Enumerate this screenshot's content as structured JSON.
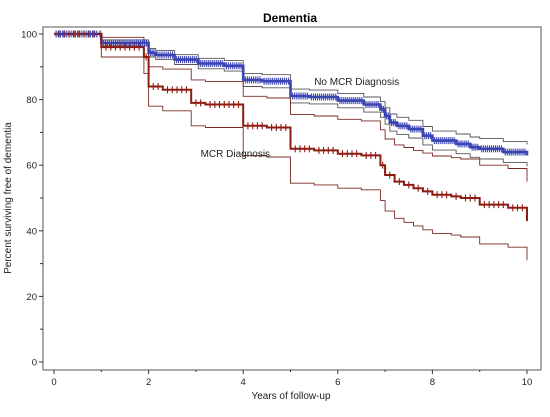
{
  "chart_data": {
    "type": "line",
    "title": "Dementia",
    "xlabel": "Years of follow-up",
    "ylabel": "Percent surviving free of dementia",
    "xlim": [
      0,
      10
    ],
    "ylim": [
      0,
      100
    ],
    "xticks": [
      0,
      2,
      4,
      6,
      8,
      10
    ],
    "yticks": [
      0,
      20,
      40,
      60,
      80,
      100
    ],
    "grid": false,
    "legend": "none",
    "annotations": [
      {
        "text": "No MCR Diagnosis",
        "x": 5.5,
        "y": 84.5
      },
      {
        "text": "MCR Diagnosis",
        "x": 3.1,
        "y": 62.5
      }
    ],
    "series": [
      {
        "name": "No MCR Diagnosis",
        "color": "#3b44b2",
        "step": true,
        "x": [
          0,
          0.95,
          1.0,
          2.0,
          2.15,
          2.55,
          3.05,
          3.6,
          4.0,
          4.4,
          5.0,
          5.4,
          6.0,
          6.55,
          6.9,
          7.0,
          7.1,
          7.25,
          7.5,
          7.8,
          8.0,
          8.5,
          8.8,
          9.0,
          9.5,
          10.0
        ],
        "y": [
          100,
          100,
          97.3,
          94.3,
          93.6,
          92.2,
          91.0,
          90.3,
          86.0,
          85.6,
          81.1,
          80.8,
          79.7,
          78.5,
          77.0,
          75.0,
          73.0,
          72.0,
          71.0,
          69.0,
          67.5,
          66.5,
          65.5,
          65.0,
          64.0,
          63.0
        ],
        "ci_upper": [
          100,
          100,
          98.2,
          95.6,
          95.0,
          93.7,
          92.6,
          91.9,
          88.0,
          87.6,
          83.2,
          82.9,
          81.9,
          80.8,
          79.4,
          77.5,
          75.6,
          74.6,
          73.7,
          71.8,
          70.4,
          69.5,
          68.6,
          68.1,
          67.2,
          66.3
        ],
        "ci_lower": [
          100,
          100,
          96.4,
          93.0,
          92.2,
          90.7,
          89.4,
          88.7,
          84.0,
          83.6,
          79.0,
          78.7,
          77.5,
          76.2,
          74.6,
          72.5,
          70.4,
          69.4,
          68.3,
          66.2,
          64.6,
          63.5,
          62.4,
          61.9,
          60.8,
          59.7
        ]
      },
      {
        "name": "MCR Diagnosis",
        "color": "#8e1a10",
        "step": true,
        "x": [
          0,
          0.95,
          1.0,
          1.9,
          2.0,
          2.3,
          2.9,
          3.2,
          4.0,
          4.5,
          5.0,
          5.5,
          6.0,
          6.5,
          6.9,
          7.0,
          7.2,
          7.4,
          7.6,
          7.8,
          8.0,
          8.4,
          8.6,
          9.0,
          9.6,
          10.0
        ],
        "y": [
          100,
          100,
          96.0,
          93.0,
          84.0,
          83.0,
          79.0,
          78.5,
          72.0,
          71.5,
          65.0,
          64.5,
          63.5,
          63.0,
          60.0,
          57.0,
          55.0,
          54.0,
          53.0,
          52.0,
          51.0,
          50.5,
          50.0,
          48.0,
          47.0,
          43.0
        ],
        "ci_upper": [
          100,
          100,
          99.0,
          97.5,
          90.0,
          89.3,
          86.0,
          85.5,
          81.0,
          80.5,
          75.5,
          75.0,
          74.0,
          73.5,
          70.8,
          68.0,
          66.2,
          65.4,
          64.5,
          63.7,
          62.8,
          62.3,
          61.9,
          60.0,
          59.0,
          55.0
        ],
        "ci_lower": [
          100,
          100,
          93.0,
          88.0,
          78.0,
          76.6,
          72.0,
          71.5,
          63.0,
          62.5,
          54.5,
          54.0,
          53.0,
          52.5,
          49.2,
          46.0,
          43.8,
          42.6,
          41.5,
          40.3,
          39.2,
          38.7,
          38.1,
          36.0,
          35.0,
          31.0
        ]
      }
    ]
  }
}
